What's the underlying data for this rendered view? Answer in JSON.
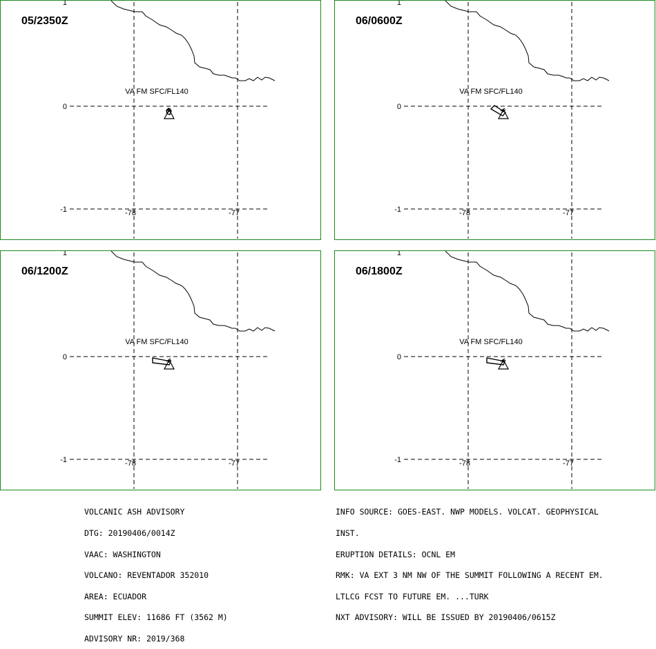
{
  "panels": [
    {
      "time": "05/2350Z",
      "level_label": "VA FM SFC/FL140",
      "y_labels": {
        "top": "1",
        "mid": "0",
        "bottom": "-1"
      },
      "x_labels": {
        "left": "-78",
        "right": "-77"
      },
      "ash": "dot"
    },
    {
      "time": "06/0600Z",
      "level_label": "VA FM SFC/FL140",
      "y_labels": {
        "top": "1",
        "mid": "0",
        "bottom": "-1"
      },
      "x_labels": {
        "left": "-78",
        "right": "-77"
      },
      "ash": "plume-short"
    },
    {
      "time": "06/1200Z",
      "level_label": "VA FM SFC/FL140",
      "y_labels": {
        "top": "1",
        "mid": "0",
        "bottom": "-1"
      },
      "x_labels": {
        "left": "-78",
        "right": "-77"
      },
      "ash": "plume-long"
    },
    {
      "time": "06/1800Z",
      "level_label": "VA FM SFC/FL140",
      "y_labels": {
        "top": "1",
        "mid": "0",
        "bottom": "-1"
      },
      "x_labels": {
        "left": "-78",
        "right": "-77"
      },
      "ash": "plume-long"
    }
  ],
  "advisory_left": [
    "VOLCANIC ASH ADVISORY",
    "DTG: 20190406/0014Z",
    "VAAC: WASHINGTON",
    "VOLCANO: REVENTADOR 352010",
    "AREA: ECUADOR",
    "SUMMIT ELEV: 11686 FT (3562 M)",
    "ADVISORY NR: 2019/368"
  ],
  "advisory_right": [
    "INFO SOURCE: GOES-EAST. NWP MODELS. VOLCAT. GEOPHYSICAL",
    "INST.",
    "ERUPTION DETAILS: OCNL EM",
    "RMK: VA EXT 3 NM NW OF THE SUMMIT FOLLOWING A RECENT EM.",
    "LTLCG FCST TO FUTURE EM. ...TURK",
    "NXT ADVISORY: WILL BE ISSUED BY 20190406/0615Z"
  ],
  "colors": {
    "panel_border": "#1a8a1a",
    "lines": "#000000",
    "background": "#ffffff"
  }
}
